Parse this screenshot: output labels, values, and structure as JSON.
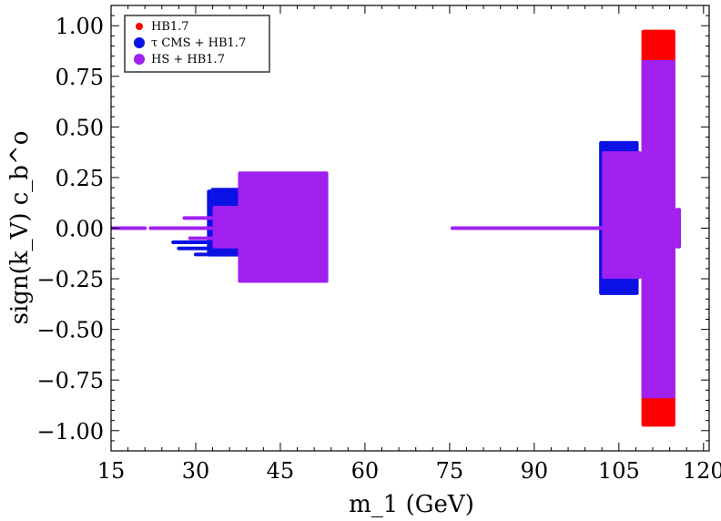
{
  "chart_data": {
    "type": "scatter",
    "title": "",
    "xlabel": "m_1 (GeV)",
    "ylabel": "sign(k_V) c_b^o",
    "xlim": [
      15,
      121
    ],
    "ylim": [
      -1.1,
      1.1
    ],
    "xticks": [
      15,
      30,
      45,
      60,
      75,
      90,
      105,
      120
    ],
    "xtick_labels": [
      "15",
      "30",
      "45",
      "60",
      "75",
      "90",
      "105",
      "120"
    ],
    "yticks": [
      1.0,
      0.75,
      0.5,
      0.25,
      0.0,
      -0.25,
      -0.5,
      -0.75,
      -1.0
    ],
    "ytick_labels": [
      "1.00",
      "0.75",
      "0.50",
      "0.25",
      "0.00",
      "−0.25",
      "−0.50",
      "−0.75",
      "−1.00"
    ],
    "grid": false,
    "legend_position": "top-left",
    "colors": {
      "hb": "#ff0000",
      "tau": "#0a12e6",
      "hs": "#a020f0"
    },
    "series": [
      {
        "name": "HB1.7",
        "color": "#ff0000",
        "regions": [
          {
            "kind": "band",
            "x": [
              109.0,
              115.0
            ],
            "y": [
              -0.98,
              0.98
            ]
          }
        ],
        "strips": []
      },
      {
        "name": "τ CMS + HB1.7",
        "color": "#0a12e6",
        "regions": [
          {
            "kind": "band",
            "x": [
              32.0,
              38.0
            ],
            "y": [
              -0.14,
              0.19
            ]
          },
          {
            "kind": "band",
            "x": [
              101.5,
              108.5
            ],
            "y": [
              -0.33,
              0.43
            ]
          }
        ],
        "strips": [
          {
            "x": [
              26.0,
              32.0
            ],
            "y": -0.07
          },
          {
            "x": [
              27.0,
              32.0
            ],
            "y": -0.1
          },
          {
            "x": [
              30.0,
              36.0
            ],
            "y": -0.13
          },
          {
            "x": [
              33.0,
              37.5
            ],
            "y": 0.19
          },
          {
            "x": [
              34.0,
              38.0
            ],
            "y": 0.15
          },
          {
            "x": [
              102.0,
              104.0
            ],
            "y": -0.28
          },
          {
            "x": [
              103.0,
              105.0
            ],
            "y": 0.4
          }
        ]
      },
      {
        "name": "HS + HB1.7",
        "color": "#a020f0",
        "regions": [
          {
            "kind": "band",
            "x": [
              37.5,
              53.5
            ],
            "y": [
              -0.27,
              0.28
            ]
          },
          {
            "kind": "band",
            "x": [
              33.0,
              38.0
            ],
            "y": [
              -0.1,
              0.11
            ]
          },
          {
            "kind": "band",
            "x": [
              102.0,
              109.0
            ],
            "y": [
              -0.25,
              0.38
            ]
          },
          {
            "kind": "band",
            "x": [
              109.0,
              115.0
            ],
            "y": [
              -0.84,
              0.83
            ]
          },
          {
            "kind": "band",
            "x": [
              115.0,
              116.0
            ],
            "y": [
              -0.1,
              0.1
            ]
          }
        ],
        "strips": [
          {
            "x": [
              15.0,
              21.0
            ],
            "y": 0.0
          },
          {
            "x": [
              22.0,
              33.0
            ],
            "y": 0.0
          },
          {
            "x": [
              75.5,
              102.0
            ],
            "y": 0.0
          },
          {
            "x": [
              28.0,
              34.0
            ],
            "y": 0.05
          },
          {
            "x": [
              29.0,
              34.0
            ],
            "y": -0.05
          }
        ]
      }
    ]
  }
}
